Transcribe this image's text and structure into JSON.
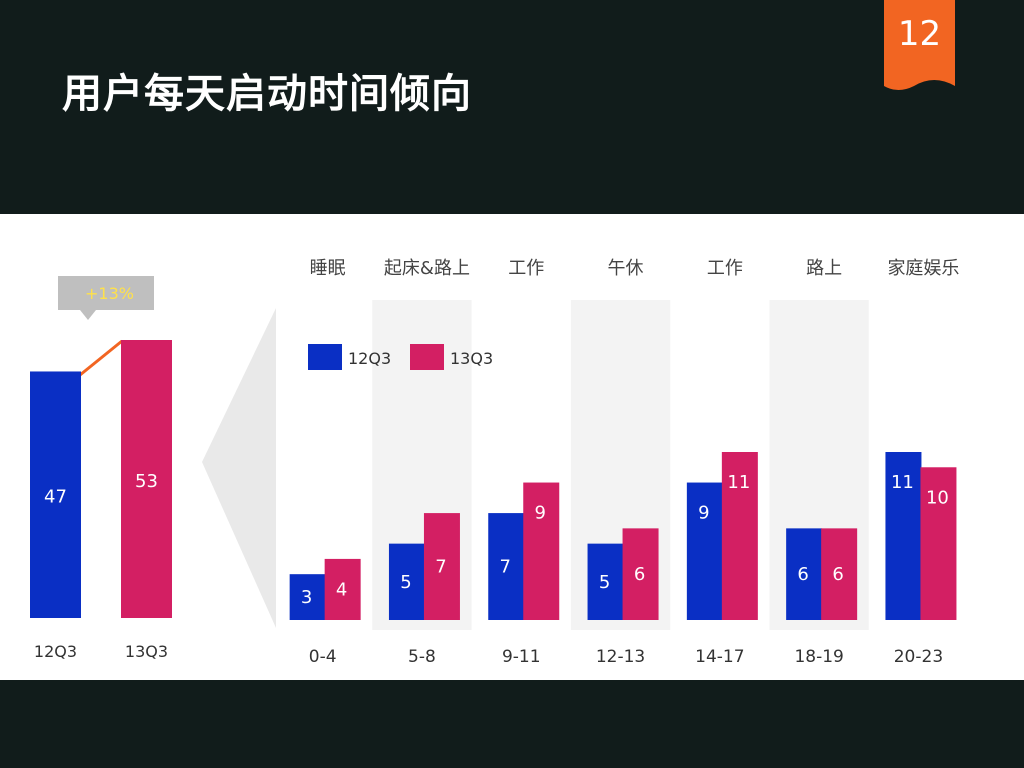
{
  "slide": {
    "title": "用户每天启动时间倾向",
    "page_number": "12",
    "colors": {
      "background": "#111c1b",
      "accent": "#f26522",
      "series_12Q3": "#0a2fc4",
      "series_13Q3": "#d31f63"
    }
  },
  "chart_data": [
    {
      "type": "bar",
      "categories": [
        "12Q3",
        "13Q3"
      ],
      "values": [
        47,
        53
      ],
      "callout": "+13%"
    },
    {
      "type": "bar",
      "categories": [
        "0-4",
        "5-8",
        "9-11",
        "12-13",
        "14-17",
        "18-19",
        "20-23"
      ],
      "group_labels": [
        "睡眠",
        "起床&路上",
        "工作",
        "午休",
        "工作",
        "路上",
        "家庭娱乐"
      ],
      "series": [
        {
          "name": "12Q3",
          "values": [
            3,
            5,
            7,
            5,
            9,
            6,
            11
          ]
        },
        {
          "name": "13Q3",
          "values": [
            4,
            7,
            9,
            6,
            11,
            6,
            10
          ]
        }
      ],
      "legend": "top-left"
    }
  ]
}
